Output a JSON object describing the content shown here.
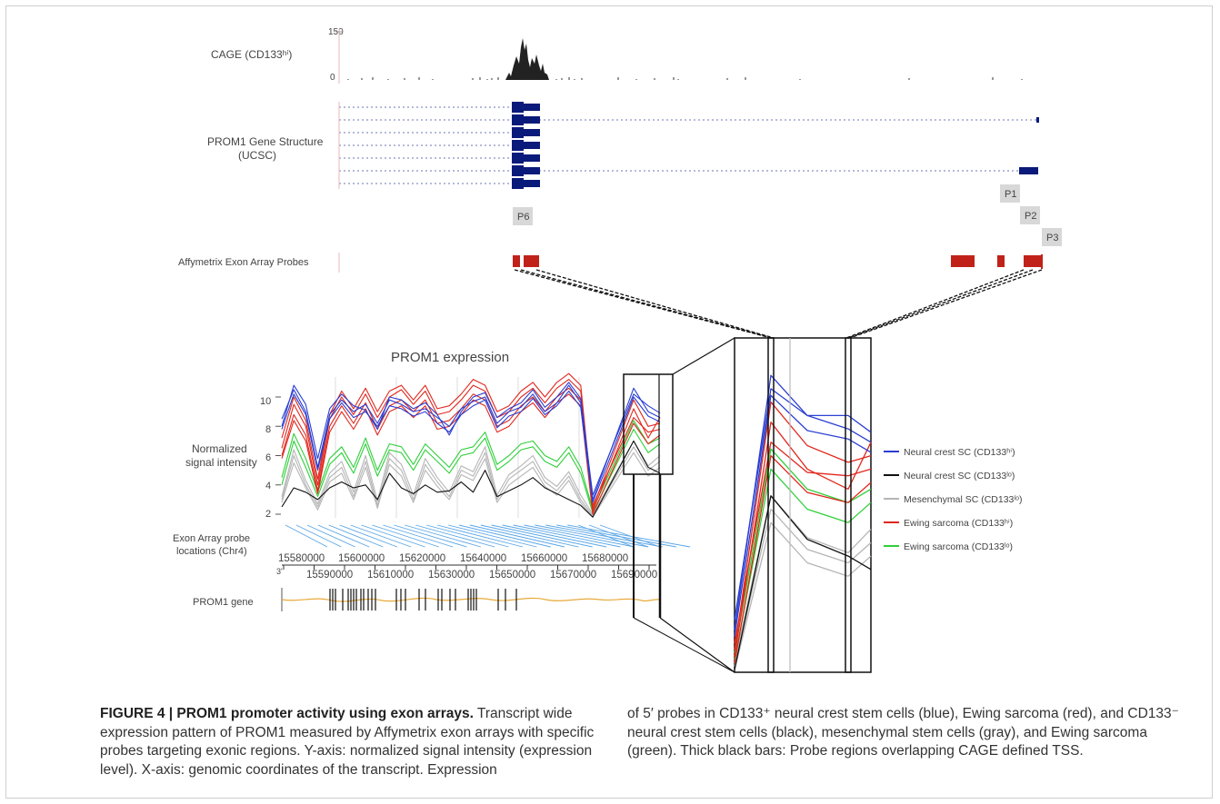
{
  "top_panel": {
    "cage_label": "CAGE (CD133ʰⁱ)",
    "cage_y_max": "150",
    "cage_y_min": "0",
    "gene_structure_label_line1": "PROM1 Gene Structure",
    "gene_structure_label_line2": "(UCSC)",
    "probes_label": "Affymetrix Exon Array Probes",
    "promoter_tags": [
      "P6",
      "P1",
      "P2",
      "P3"
    ],
    "colors": {
      "gene": "#0a1a7a",
      "intron": "#6d74b5",
      "probe": "#c0221a",
      "cage": "#222222"
    }
  },
  "chart_data": {
    "type": "line",
    "title": "PROM1 expression",
    "ylabel_line1": "Normalized",
    "ylabel_line2": "signal intensity",
    "y_ticks": [
      "10",
      "8",
      "6",
      "4",
      "2"
    ],
    "ylim": [
      2,
      11
    ],
    "probe_axis_label_line1": "Exon Array probe",
    "probe_axis_label_line2": "locations (Chr4)",
    "x_ticks_upper": [
      "15580000",
      "15600000",
      "15620000",
      "15640000",
      "15660000",
      "15680000"
    ],
    "x_ticks_lower": [
      "15590000",
      "15610000",
      "15630000",
      "15650000",
      "15670000",
      "15690000"
    ],
    "x_axis_end_label": "3'",
    "gene_track_label": "PROM1 gene",
    "n_probes": 30,
    "series": [
      {
        "name": "Neural crest SC (CD133ʰⁱ)",
        "color": "#2b3fd1",
        "values": [
          [
            8.5,
            10.5,
            9.0,
            5.2,
            8.8,
            9.8,
            9.0,
            9.5,
            8.2,
            9.8,
            9.5,
            9.0,
            9.2,
            8.6,
            8.0,
            9.2,
            9.7,
            10.0,
            8.2,
            9.0,
            9.3,
            10.2,
            9.0,
            9.6,
            10.8,
            9.6,
            3.0,
            10.6,
            9.0,
            8.6
          ],
          [
            8.0,
            10.8,
            9.5,
            5.8,
            9.2,
            10.2,
            9.4,
            9.1,
            7.8,
            10.0,
            9.8,
            9.2,
            9.6,
            8.8,
            7.4,
            9.0,
            10.0,
            10.3,
            8.6,
            9.2,
            9.6,
            10.5,
            9.3,
            10.0,
            11.0,
            9.9,
            3.3,
            10.2,
            9.4,
            8.9
          ],
          [
            7.8,
            10.2,
            8.8,
            5.0,
            8.5,
            9.6,
            8.6,
            9.0,
            8.0,
            9.4,
            9.2,
            8.7,
            9.0,
            8.2,
            7.6,
            8.8,
            9.4,
            9.8,
            7.9,
            8.7,
            9.0,
            9.9,
            8.8,
            9.4,
            10.4,
            9.3,
            2.8,
            10.0,
            8.7,
            8.3
          ]
        ]
      },
      {
        "name": "Neural crest SC (CD133ˡᵒ)",
        "color": "#111111",
        "values": [
          [
            2.5,
            3.8,
            3.5,
            3.0,
            3.8,
            4.2,
            3.8,
            4.0,
            3.0,
            4.8,
            3.8,
            3.4,
            4.0,
            3.5,
            3.6,
            4.2,
            3.5,
            5.0,
            3.2,
            3.6,
            4.0,
            4.5,
            3.8,
            3.4,
            3.0,
            2.6,
            1.8,
            7.0,
            5.2,
            4.8
          ]
        ]
      },
      {
        "name": "Mesenchymal SC (CD133ˡᵒ)",
        "color": "#b5b5b5",
        "values": [
          [
            3.0,
            6.0,
            4.0,
            2.5,
            4.5,
            5.2,
            3.2,
            5.6,
            2.6,
            5.8,
            5.0,
            3.0,
            5.4,
            4.2,
            3.2,
            5.0,
            4.6,
            6.2,
            3.0,
            4.4,
            5.0,
            5.6,
            4.2,
            3.6,
            4.6,
            3.0,
            1.9,
            6.6,
            5.0,
            5.6
          ],
          [
            2.8,
            5.5,
            3.8,
            2.3,
            4.2,
            4.8,
            3.0,
            5.2,
            2.4,
            5.4,
            4.6,
            2.8,
            5.0,
            3.9,
            3.0,
            4.7,
            4.3,
            5.8,
            2.8,
            4.0,
            4.6,
            5.2,
            3.9,
            3.3,
            4.3,
            2.8,
            1.8,
            6.2,
            4.6,
            5.2
          ],
          [
            3.2,
            6.4,
            4.3,
            2.7,
            4.8,
            5.6,
            3.5,
            6.0,
            2.9,
            6.2,
            5.4,
            3.3,
            5.8,
            4.5,
            3.5,
            5.3,
            4.9,
            6.6,
            3.3,
            4.7,
            5.3,
            6.0,
            4.5,
            3.9,
            4.9,
            3.3,
            2.0,
            7.0,
            5.3,
            6.0
          ]
        ]
      },
      {
        "name": "Ewing sarcoma (CD133ʰⁱ)",
        "color": "#e0281e",
        "values": [
          [
            6.5,
            9.5,
            8.0,
            4.0,
            8.5,
            10.0,
            8.8,
            10.2,
            8.6,
            10.0,
            10.5,
            9.5,
            10.4,
            8.8,
            9.0,
            9.8,
            10.8,
            10.4,
            8.6,
            9.0,
            10.0,
            10.6,
            9.6,
            10.6,
            11.2,
            10.4,
            2.4,
            9.8,
            8.0,
            8.2
          ],
          [
            6.0,
            8.8,
            7.4,
            3.6,
            8.0,
            9.4,
            8.2,
            9.6,
            7.8,
            9.4,
            9.8,
            9.0,
            9.8,
            8.2,
            8.4,
            9.2,
            10.2,
            9.8,
            8.0,
            8.4,
            9.4,
            10.0,
            9.0,
            10.0,
            10.6,
            9.8,
            2.2,
            9.2,
            7.2,
            8.6
          ],
          [
            7.2,
            10.0,
            8.4,
            4.4,
            8.8,
            10.4,
            9.2,
            10.6,
            9.0,
            10.4,
            10.8,
            9.8,
            10.8,
            9.2,
            9.4,
            10.2,
            11.2,
            10.8,
            9.0,
            9.4,
            10.4,
            11.0,
            10.0,
            11.0,
            11.6,
            10.8,
            2.6,
            8.6,
            7.6,
            7.8
          ],
          [
            5.8,
            8.4,
            7.0,
            3.4,
            7.6,
            9.0,
            7.8,
            9.2,
            7.4,
            9.0,
            9.4,
            8.6,
            9.4,
            7.8,
            8.0,
            8.8,
            9.8,
            9.4,
            7.6,
            8.0,
            9.0,
            9.6,
            8.6,
            9.6,
            10.2,
            9.4,
            2.0,
            8.2,
            6.8,
            7.4
          ]
        ]
      },
      {
        "name": "Ewing sarcoma (CD133ˡᵒ)",
        "color": "#2fcf3a",
        "values": [
          [
            4.5,
            7.5,
            5.8,
            3.5,
            5.8,
            6.6,
            5.2,
            7.2,
            5.0,
            6.8,
            6.6,
            5.4,
            6.8,
            6.0,
            5.2,
            6.4,
            6.6,
            7.6,
            5.4,
            6.0,
            6.8,
            7.0,
            6.0,
            5.6,
            6.6,
            5.2,
            2.3,
            8.4,
            6.8,
            7.2
          ],
          [
            4.0,
            7.0,
            5.2,
            3.2,
            5.4,
            6.2,
            4.8,
            6.8,
            4.6,
            6.4,
            6.2,
            5.0,
            6.4,
            5.6,
            4.8,
            6.0,
            6.2,
            7.2,
            5.0,
            5.6,
            6.4,
            6.6,
            5.6,
            5.2,
            6.2,
            4.8,
            2.1,
            7.8,
            6.2,
            6.8
          ]
        ]
      }
    ]
  },
  "zoom_panel": {
    "legend": [
      {
        "label": "Neural crest SC (CD133ʰⁱ)",
        "color": "#2b3fd1"
      },
      {
        "label": "Neural crest SC (CD133ˡᵒ)",
        "color": "#111111"
      },
      {
        "label": "Mesenchymal SC (CD133ˡᵒ)",
        "color": "#b5b5b5"
      },
      {
        "label": "Ewing sarcoma (CD133ʰⁱ)",
        "color": "#e0281e"
      },
      {
        "label": "Ewing sarcoma (CD133ˡᵒ)",
        "color": "#2fcf3a"
      }
    ]
  },
  "caption": {
    "figure_label": "FIGURE 4 | PROM1 promoter activity using exon arrays.",
    "text_left": " Transcript wide expression pattern of PROM1 measured by Affymetrix exon arrays with specific probes targeting exonic regions. Y-axis: normalized signal intensity (expression level). X-axis: genomic coordinates of the transcript. Expression",
    "text_right": "of 5′ probes in CD133⁺ neural crest stem cells (blue), Ewing sarcoma (red), and CD133⁻ neural crest stem cells (black), mesenchymal stem cells (gray), and Ewing sarcoma (green). Thick black bars: Probe regions overlapping CAGE defined TSS."
  }
}
